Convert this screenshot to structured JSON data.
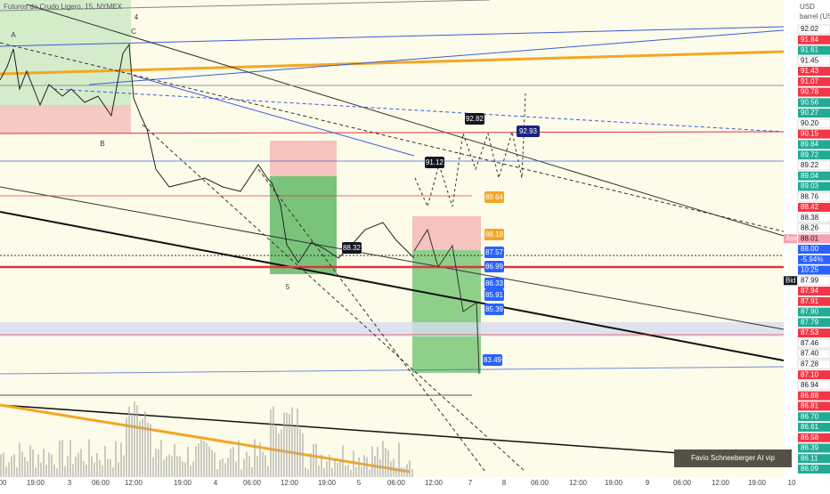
{
  "header": {
    "title": "Futuros de Crudo Ligero, 15, NYMEX",
    "currency": "USD",
    "unit": "barrel (US)"
  },
  "price_axis": [
    {
      "label": "92.02",
      "tone": "grey"
    },
    {
      "label": "91.84",
      "tone": "red"
    },
    {
      "label": "91.61",
      "tone": "green"
    },
    {
      "label": "91.45",
      "tone": "grey"
    },
    {
      "label": "91.43",
      "tone": "red"
    },
    {
      "label": "91.07",
      "tone": "red"
    },
    {
      "label": "90.78",
      "tone": "red"
    },
    {
      "label": "90.56",
      "tone": "green"
    },
    {
      "label": "90.27",
      "tone": "green"
    },
    {
      "label": "90.20",
      "tone": "grey"
    },
    {
      "label": "90.15",
      "tone": "red"
    },
    {
      "label": "89.84",
      "tone": "green"
    },
    {
      "label": "89.72",
      "tone": "green"
    },
    {
      "label": "89.22",
      "tone": "grey"
    },
    {
      "label": "89.04",
      "tone": "green"
    },
    {
      "label": "89.03",
      "tone": "green"
    },
    {
      "label": "88.76",
      "tone": "grey"
    },
    {
      "label": "88.42",
      "tone": "red"
    },
    {
      "label": "88.38",
      "tone": "grey"
    },
    {
      "label": "88.26",
      "tone": "grey"
    },
    {
      "label": "88.01",
      "tone": "pink",
      "tag": "Ask"
    },
    {
      "label": "88.00",
      "tone": "blue"
    },
    {
      "label": "-5.94%",
      "tone": "blue"
    },
    {
      "label": "10:25",
      "tone": "blue"
    },
    {
      "label": "87.99",
      "tone": "grey",
      "tag": "Bid"
    },
    {
      "label": "87.94",
      "tone": "red"
    },
    {
      "label": "87.91",
      "tone": "red"
    },
    {
      "label": "87.90",
      "tone": "green"
    },
    {
      "label": "87.79",
      "tone": "green"
    },
    {
      "label": "87.53",
      "tone": "red"
    },
    {
      "label": "87.46",
      "tone": "grey"
    },
    {
      "label": "87.40",
      "tone": "grey"
    },
    {
      "label": "87.28",
      "tone": "grey"
    },
    {
      "label": "87.10",
      "tone": "red"
    },
    {
      "label": "86.94",
      "tone": "grey"
    },
    {
      "label": "86.88",
      "tone": "red"
    },
    {
      "label": "86.81",
      "tone": "red"
    },
    {
      "label": "86.70",
      "tone": "green"
    },
    {
      "label": "86.61",
      "tone": "green"
    },
    {
      "label": "86.58",
      "tone": "red"
    },
    {
      "label": "86.39",
      "tone": "green"
    },
    {
      "label": "86.11",
      "tone": "green"
    },
    {
      "label": "86.09",
      "tone": "green"
    }
  ],
  "time_axis": [
    "00",
    "19:00",
    "3",
    "06:00",
    "12:00",
    "19:00",
    "4",
    "06:00",
    "12:00",
    "19:00",
    "5",
    "06:00",
    "12:00",
    "7",
    "8",
    "06:00",
    "12:00",
    "19:00",
    "9",
    "06:00",
    "12:00",
    "19:00",
    "10"
  ],
  "price_labels": [
    {
      "label": "92.82",
      "tone": "black"
    },
    {
      "label": "92.93",
      "tone": "navy"
    },
    {
      "label": "91.12",
      "tone": "black"
    },
    {
      "label": "89.64",
      "tone": "orange"
    },
    {
      "label": "88.32",
      "tone": "black"
    },
    {
      "label": "88.18",
      "tone": "orange"
    },
    {
      "label": "87.57",
      "tone": "blue"
    },
    {
      "label": "86.99",
      "tone": "blue"
    },
    {
      "label": "86.33",
      "tone": "blue"
    },
    {
      "label": "85.91",
      "tone": "blue"
    },
    {
      "label": "85.39",
      "tone": "blue"
    },
    {
      "label": "83.49",
      "tone": "blue"
    }
  ],
  "wave_labels": [
    "A",
    "B",
    "C",
    "4",
    "5"
  ],
  "watermark": "Favio Schneeberger AI vip"
}
